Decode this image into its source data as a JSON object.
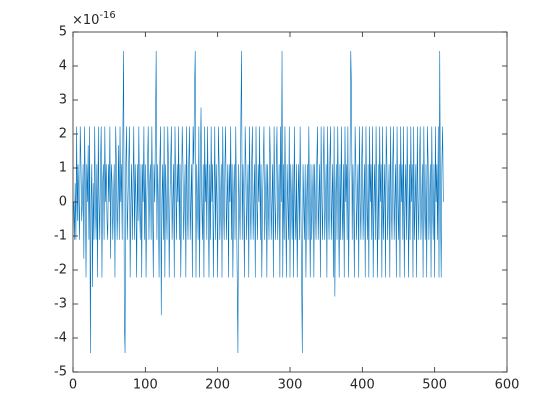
{
  "chart_data": {
    "type": "line",
    "y_multiplier": {
      "base": "×10",
      "exponent": "-16"
    },
    "xlim": [
      0,
      600
    ],
    "xticks": [
      0,
      100,
      200,
      300,
      400,
      500,
      600
    ],
    "ylim": [
      -5,
      5
    ],
    "yticks": [
      -5,
      -4,
      -3,
      -2,
      -1,
      0,
      1,
      2,
      3,
      4,
      5
    ],
    "grid": false,
    "series": [
      {
        "color": "#0072bd",
        "values": [
          0,
          -1.11,
          0.555,
          -1.11,
          2.22,
          -0.555,
          1.11,
          0,
          -1.11,
          2.22,
          1.11,
          -0.555,
          0,
          1.11,
          -1.67,
          2.22,
          0.555,
          -2.22,
          1.11,
          0,
          1.67,
          -1.11,
          2.22,
          -4.44,
          0,
          1.11,
          -2.5,
          0.555,
          -1.11,
          2.22,
          0,
          -1.11,
          1.11,
          -2.22,
          2.22,
          0,
          -1.11,
          1.11,
          2.22,
          -2.22,
          0.555,
          1.11,
          -1.11,
          2.22,
          0,
          1.11,
          -0.555,
          -1.11,
          1.11,
          0,
          2.22,
          -1.67,
          1.11,
          0.555,
          -1.11,
          0,
          1.11,
          -2.22,
          2.22,
          1.11,
          -1.11,
          0,
          1.67,
          -1.11,
          2.22,
          0,
          1.11,
          -1.11,
          2.22,
          4.44,
          -3.6,
          -4.44,
          1.11,
          2.22,
          -1.11,
          0,
          1.11,
          2.22,
          -2.22,
          0,
          1.11,
          -1.11,
          0.555,
          2.22,
          -1.11,
          1.11,
          0,
          -2.22,
          1.11,
          -0.555,
          2.22,
          0,
          -1.11,
          1.11,
          -2.22,
          1.11,
          0,
          2.22,
          -1.11,
          1.11,
          -2.22,
          0,
          1.11,
          2.22,
          -1.11,
          0.555,
          1.11,
          -1.11,
          2.22,
          0,
          -2.22,
          1.11,
          0,
          2.22,
          4.44,
          -1.11,
          1.11,
          0,
          -2.22,
          1.11,
          2.22,
          -3.33,
          0,
          1.11,
          -1.11,
          2.22,
          -2.22,
          1.11,
          0,
          -1.11,
          2.22,
          1.11,
          -2.22,
          0,
          1.11,
          2.22,
          -1.11,
          0,
          1.11,
          -2.22,
          2.22,
          0.555,
          -1.11,
          1.11,
          0,
          2.22,
          -1.11,
          1.11,
          -2.22,
          0,
          2.22,
          1.11,
          -1.11,
          0,
          1.11,
          -2.22,
          2.22,
          0,
          -1.11,
          1.11,
          2.22,
          -1.11,
          0,
          1.11,
          -2.22,
          2.22,
          1.11,
          3.33,
          4.44,
          -2.22,
          1.11,
          0,
          -1.11,
          2.22,
          -2.22,
          1.11,
          2.78,
          0,
          -1.11,
          1.11,
          -2.22,
          2.22,
          0,
          1.11,
          -1.11,
          2.22,
          0,
          -2.22,
          1.11,
          -1.11,
          2.22,
          0,
          1.11,
          -2.22,
          0,
          2.22,
          -1.11,
          1.11,
          0,
          -2.22,
          2.22,
          1.11,
          -1.11,
          0,
          1.11,
          -2.22,
          2.22,
          0,
          -1.11,
          1.11,
          2.22,
          -1.11,
          0,
          1.11,
          -2.22,
          1.11,
          0,
          2.22,
          -1.11,
          1.11,
          -2.22,
          0,
          1.11,
          -1.11,
          2.22,
          0,
          -2.22,
          -4.44,
          1.11,
          0,
          -1.11,
          2.22,
          4.44,
          -1.11,
          1.11,
          0,
          -2.22,
          2.22,
          1.11,
          -1.11,
          0,
          1.11,
          -2.22,
          2.22,
          0,
          -1.11,
          1.11,
          2.22,
          -1.11,
          0,
          1.11,
          -2.22,
          2.22,
          0,
          -1.11,
          1.11,
          0,
          2.22,
          -1.11,
          1.11,
          -2.22,
          0,
          1.11,
          2.22,
          -1.11,
          0,
          1.11,
          -2.22,
          1.11,
          0,
          -1.11,
          2.22,
          1.11,
          -1.11,
          0,
          1.11,
          -2.22,
          2.22,
          0,
          -1.11,
          1.11,
          2.22,
          -1.11,
          0,
          1.11,
          -2.22,
          2.22,
          0,
          4.44,
          -2.22,
          1.11,
          -1.11,
          2.22,
          0,
          -2.22,
          1.11,
          0,
          -1.11,
          2.22,
          -2.22,
          1.11,
          0,
          -1.11,
          1.11,
          -2.22,
          2.22,
          0,
          -1.11,
          1.11,
          -2.22,
          0,
          1.11,
          -1.11,
          2.22,
          0,
          -2.22,
          -4.44,
          1.11,
          0,
          -1.11,
          1.11,
          -2.22,
          0,
          1.11,
          -1.11,
          2.22,
          0,
          -2.22,
          1.11,
          -1.11,
          0,
          1.11,
          -2.22,
          1.11,
          0,
          -1.11,
          1.11,
          2.22,
          -1.11,
          0,
          1.11,
          -2.22,
          2.22,
          0,
          -1.11,
          1.11,
          2.22,
          -1.11,
          0,
          1.11,
          -2.22,
          2.22,
          0,
          -1.11,
          1.11,
          2.22,
          -1.11,
          0,
          1.11,
          -2.22,
          2.22,
          -2.78,
          0,
          1.11,
          -1.11,
          2.22,
          0,
          -2.22,
          1.11,
          -1.11,
          2.22,
          0,
          -1.11,
          1.11,
          -2.22,
          2.22,
          0,
          1.11,
          -1.11,
          2.22,
          -2.22,
          0,
          1.11,
          4.44,
          3.33,
          -1.11,
          1.11,
          0,
          -2.22,
          2.22,
          1.11,
          -1.11,
          0,
          1.11,
          -2.22,
          2.22,
          0,
          -1.11,
          1.11,
          2.22,
          -1.11,
          0,
          1.11,
          -2.22,
          2.22,
          0,
          -1.11,
          1.11,
          -2.22,
          2.22,
          0,
          1.11,
          -1.11,
          2.22,
          -2.22,
          0,
          1.11,
          -1.11,
          2.22,
          0,
          -2.22,
          1.11,
          -1.11,
          2.22,
          0,
          1.11,
          -2.22,
          2.22,
          -1.11,
          0,
          1.11,
          -2.22,
          2.22,
          1.11,
          -1.11,
          0,
          1.11,
          -2.22,
          2.22,
          0,
          -1.11,
          1.11,
          2.22,
          -1.11,
          0,
          1.11,
          -2.22,
          2.22,
          0,
          -1.11,
          1.11,
          -2.22,
          2.22,
          0,
          1.11,
          -1.11,
          2.22,
          -2.22,
          0,
          1.11,
          -1.11,
          2.22,
          0,
          -2.22,
          1.11,
          -1.11,
          2.22,
          0,
          1.11,
          -2.22,
          2.22,
          -1.11,
          0,
          1.11,
          -2.22,
          2.22,
          0,
          -1.11,
          1.11,
          2.22,
          -1.11,
          0,
          1.11,
          -2.22,
          2.22,
          0,
          -1.11,
          1.11,
          -2.22,
          2.22,
          1.11,
          -1.11,
          0,
          1.11,
          -2.22,
          2.22,
          0,
          -1.11,
          1.11,
          -2.22,
          2.22,
          0,
          1.11,
          -1.11,
          2.22,
          -2.22,
          4.44,
          0,
          -2.22,
          1.11,
          2.22,
          0
        ]
      }
    ]
  }
}
